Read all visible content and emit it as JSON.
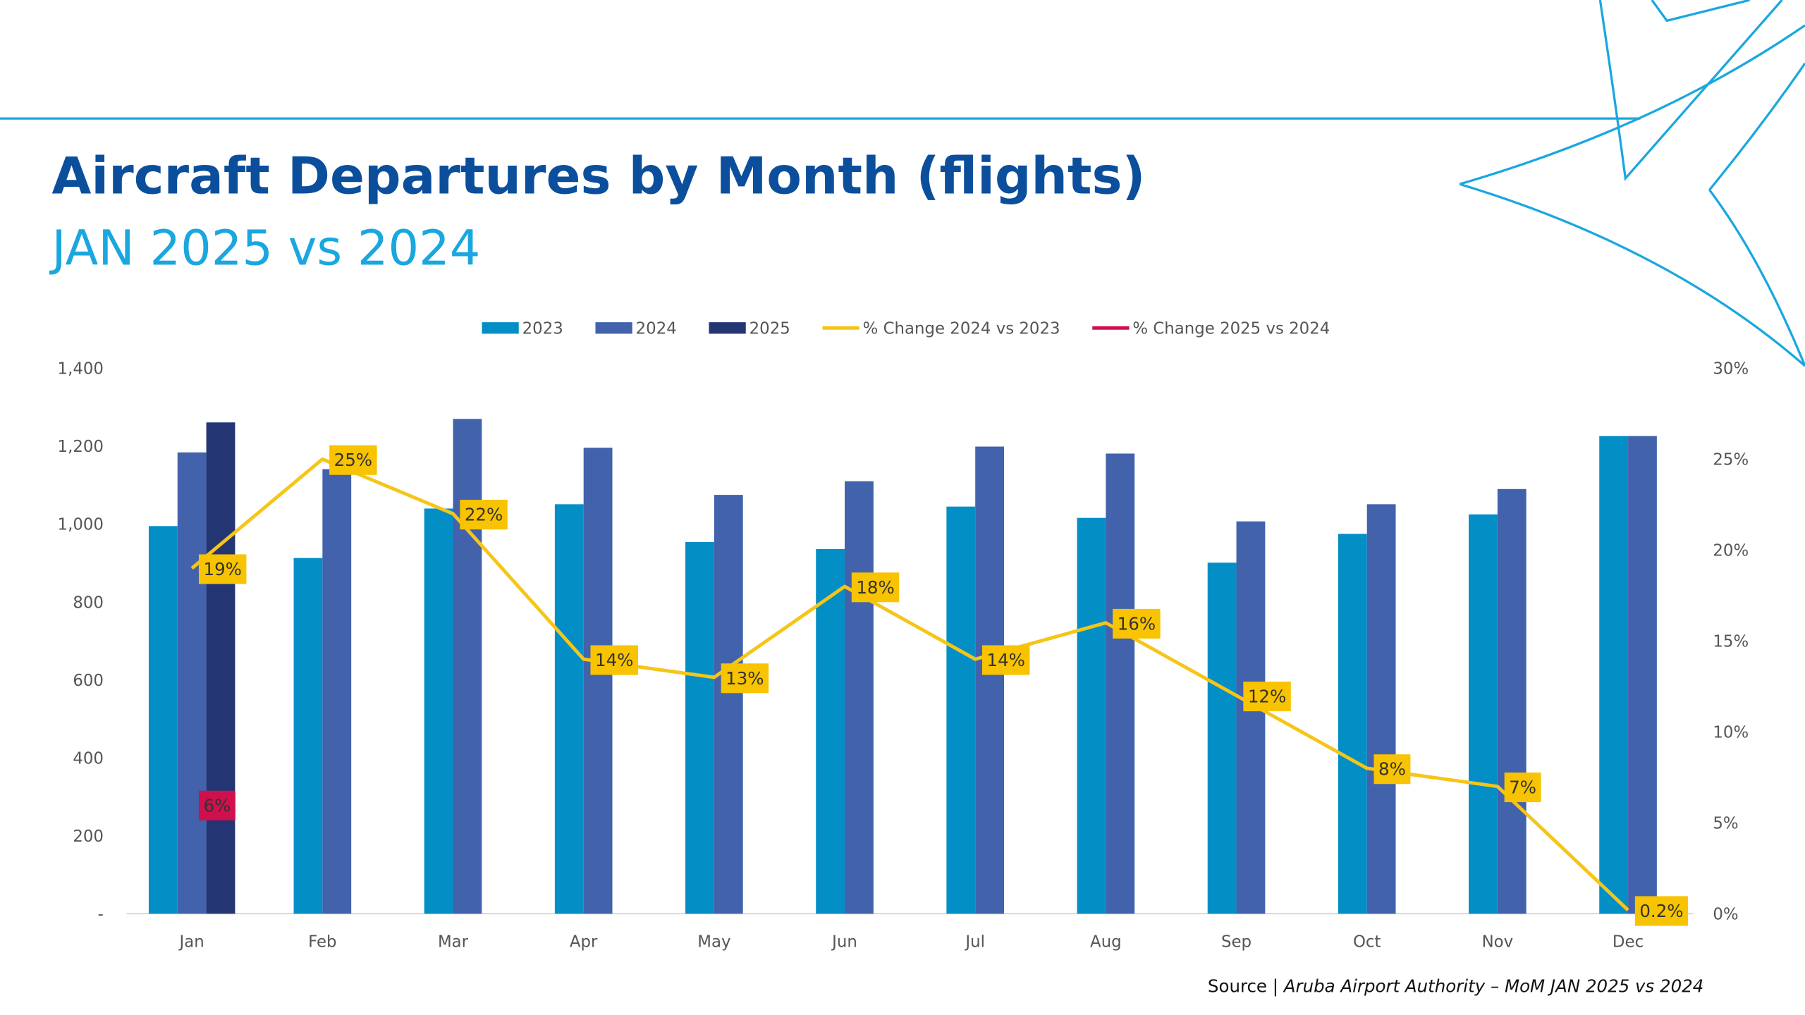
{
  "chart_data": {
    "type": "bar",
    "title": "Aircraft Departures by Month (flights)",
    "subtitle": "JAN 2025 vs 2024",
    "source_label": "Source |",
    "source_text": "Aruba Airport Authority – MoM JAN 2025 vs 2024",
    "categories": [
      "Jan",
      "Feb",
      "Mar",
      "Apr",
      "May",
      "Jun",
      "Jul",
      "Aug",
      "Sep",
      "Oct",
      "Nov",
      "Dec"
    ],
    "ylim": [
      0,
      1400
    ],
    "yticks": [
      {
        "value": 0,
        "label": "-"
      },
      200,
      400,
      600,
      800,
      {
        "value": 1000,
        "label": "1,000"
      },
      {
        "value": 1200,
        "label": "1,200"
      },
      {
        "value": 1400,
        "label": "1,400"
      }
    ],
    "y2lim": [
      0,
      30
    ],
    "y2ticks": [
      {
        "value": 0,
        "label": "0%"
      },
      {
        "value": 5,
        "label": "5%"
      },
      {
        "value": 10,
        "label": "10%"
      },
      {
        "value": 15,
        "label": "15%"
      },
      {
        "value": 20,
        "label": "20%"
      },
      {
        "value": 25,
        "label": "25%"
      },
      {
        "value": 30,
        "label": "30%"
      }
    ],
    "series": [
      {
        "name": "2023",
        "type": "bar",
        "color": "#038fc6",
        "values": [
          995,
          913,
          1040,
          1051,
          954,
          936,
          1045,
          1016,
          901,
          975,
          1025,
          1226
        ]
      },
      {
        "name": "2024",
        "type": "bar",
        "color": "#4262ab",
        "values": [
          1184,
          1141,
          1270,
          1196,
          1075,
          1110,
          1199,
          1181,
          1007,
          1051,
          1090,
          1226
        ]
      },
      {
        "name": "2025",
        "type": "bar",
        "color": "#243574",
        "values": [
          1261,
          null,
          null,
          null,
          null,
          null,
          null,
          null,
          null,
          null,
          null,
          null
        ]
      },
      {
        "name": "% Change 2024 vs 2023",
        "type": "line",
        "axis": "y2",
        "color": "#f5c518",
        "values": [
          19,
          25,
          22,
          14,
          13,
          18,
          14,
          16,
          12,
          8,
          7,
          0.2
        ],
        "value_labels": [
          "19%",
          "25%",
          "22%",
          "14%",
          "13%",
          "18%",
          "14%",
          "16%",
          "12%",
          "8%",
          "7%",
          "0.2%"
        ]
      },
      {
        "name": "% Change 2025 vs 2024",
        "type": "line",
        "axis": "y2",
        "color": "#d0104c",
        "values": [
          6,
          null,
          null,
          null,
          null,
          null,
          null,
          null,
          null,
          null,
          null,
          null
        ],
        "value_labels": [
          "6%",
          null,
          null,
          null,
          null,
          null,
          null,
          null,
          null,
          null,
          null,
          null
        ]
      }
    ]
  }
}
